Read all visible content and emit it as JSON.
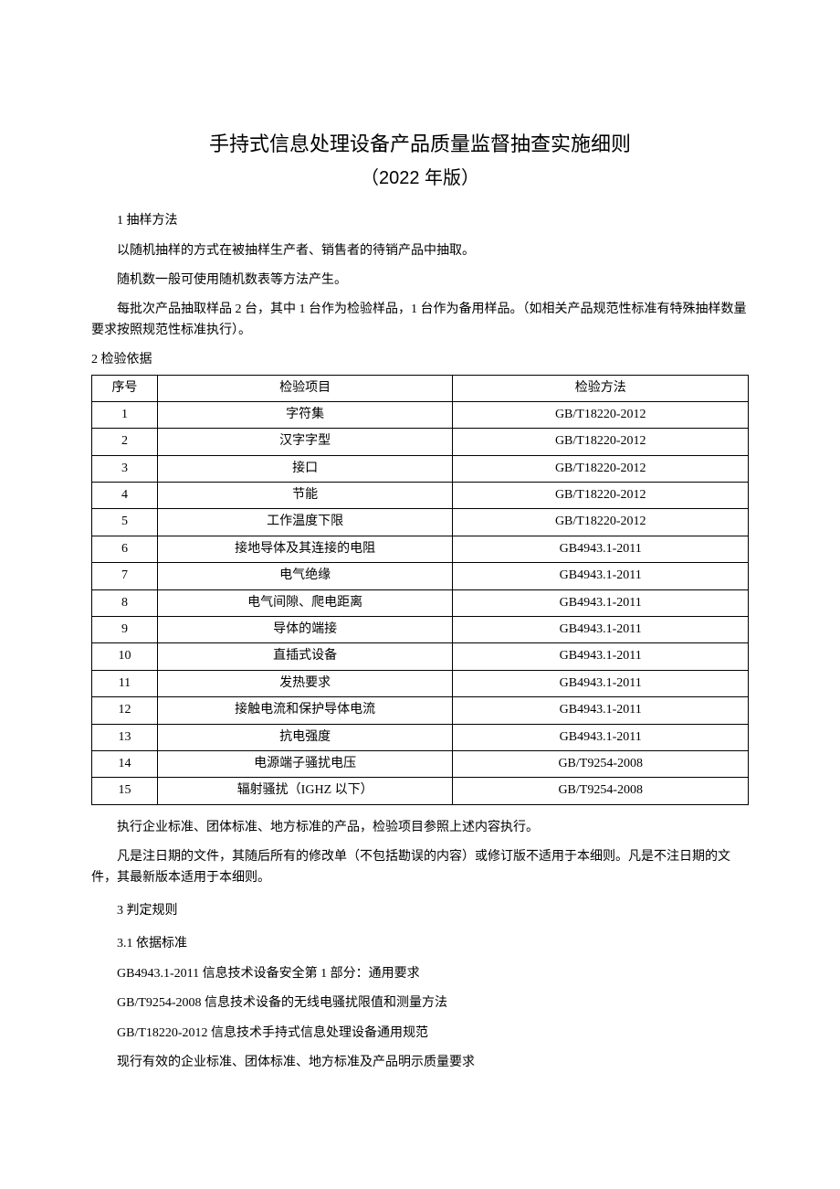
{
  "title": "手持式信息处理设备产品质量监督抽查实施细则",
  "subtitle": "（2022 年版）",
  "s1": {
    "heading": "1 抽样方法",
    "p1": "以随机抽样的方式在被抽样生产者、销售者的待销产品中抽取。",
    "p2": "随机数一般可使用随机数表等方法产生。",
    "p3": "每批次产品抽取样品 2 台，其中 1 台作为检验样品，1 台作为备用样品。（如相关产品规范性标准有特殊抽样数量要求按照规范性标准执行）。"
  },
  "s2": {
    "heading": "2 检验依据",
    "table": {
      "headers": {
        "seq": "序号",
        "item": "检验项目",
        "method": "检验方法"
      },
      "rows": [
        {
          "seq": "1",
          "item": "字符集",
          "method": "GB/T18220-2012"
        },
        {
          "seq": "2",
          "item": "汉字字型",
          "method": "GB/T18220-2012"
        },
        {
          "seq": "3",
          "item": "接口",
          "method": "GB/T18220-2012"
        },
        {
          "seq": "4",
          "item": "节能",
          "method": "GB/T18220-2012"
        },
        {
          "seq": "5",
          "item": "工作温度下限",
          "method": "GB/T18220-2012"
        },
        {
          "seq": "6",
          "item": "接地导体及其连接的电阻",
          "method": "GB4943.1-2011"
        },
        {
          "seq": "7",
          "item": "电气绝缘",
          "method": "GB4943.1-2011"
        },
        {
          "seq": "8",
          "item": "电气间隙、爬电距离",
          "method": "GB4943.1-2011"
        },
        {
          "seq": "9",
          "item": "导体的端接",
          "method": "GB4943.1-2011"
        },
        {
          "seq": "10",
          "item": "直插式设备",
          "method": "GB4943.1-2011"
        },
        {
          "seq": "11",
          "item": "发热要求",
          "method": "GB4943.1-2011"
        },
        {
          "seq": "12",
          "item": "接触电流和保护导体电流",
          "method": "GB4943.1-2011"
        },
        {
          "seq": "13",
          "item": "抗电强度",
          "method": "GB4943.1-2011"
        },
        {
          "seq": "14",
          "item": "电源端子骚扰电压",
          "method": "GB/T9254-2008"
        },
        {
          "seq": "15",
          "item": "辐射骚扰（IGHZ 以下）",
          "method": "GB/T9254-2008"
        }
      ]
    },
    "p1": "执行企业标准、团体标准、地方标准的产品，检验项目参照上述内容执行。",
    "p2": "凡是注日期的文件，其随后所有的修改单（不包括勘误的内容）或修订版不适用于本细则。凡是不注日期的文件，其最新版本适用于本细则。"
  },
  "s3": {
    "heading": "3 判定规则",
    "sub1": {
      "heading": "3.1 依据标准",
      "lines": [
        "GB4943.1-2011 信息技术设备安全第 1 部分：通用要求",
        "GB/T9254-2008 信息技术设备的无线电骚扰限值和测量方法",
        "GB/T18220-2012 信息技术手持式信息处理设备通用规范",
        "现行有效的企业标准、团体标准、地方标准及产品明示质量要求"
      ]
    }
  }
}
